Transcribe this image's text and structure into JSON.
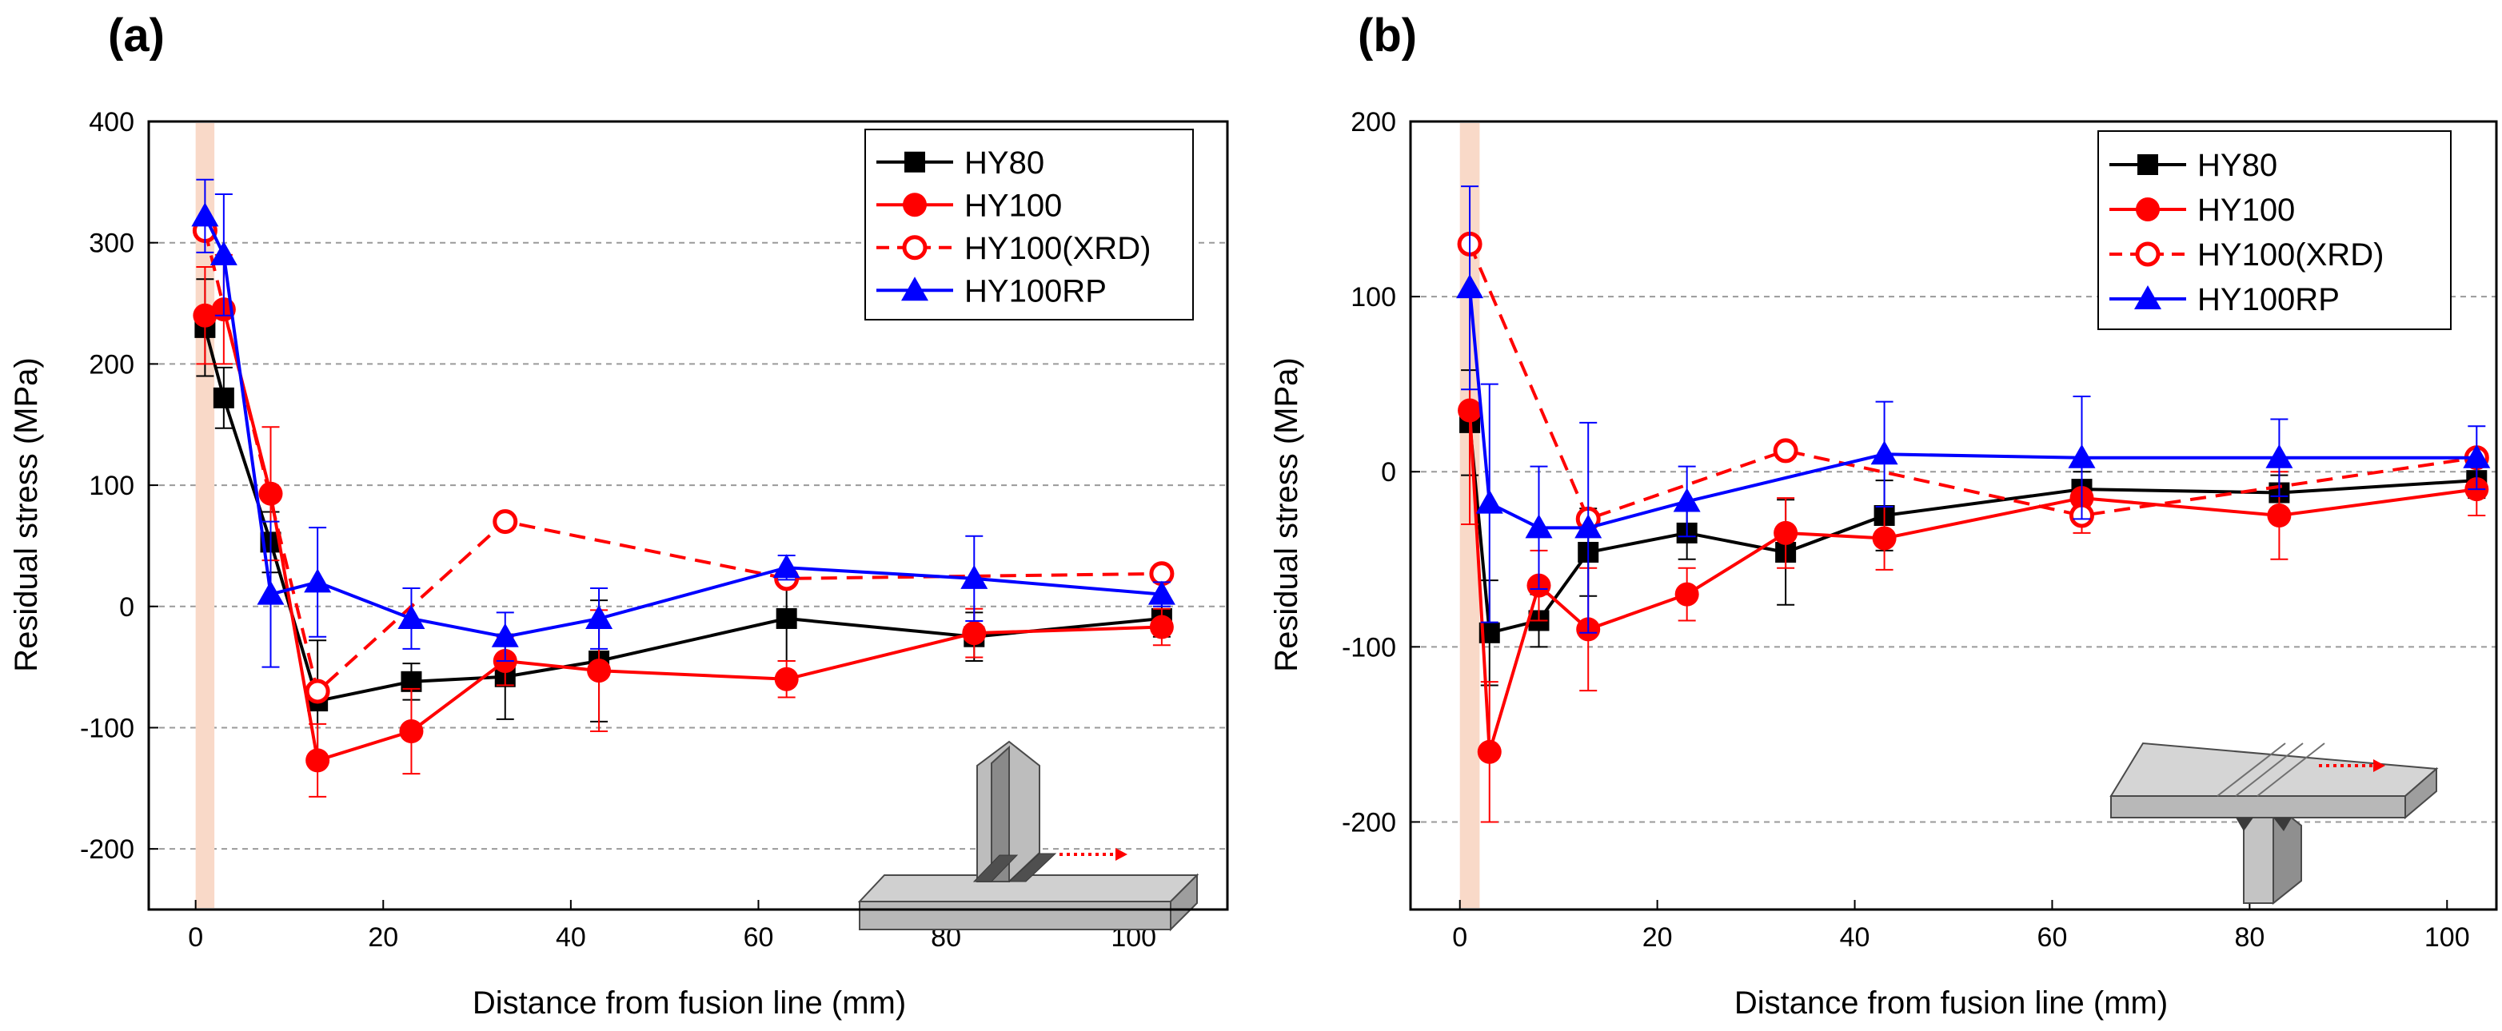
{
  "chart_data": [
    {
      "type": "line",
      "panel_label": "(a)",
      "xlabel": "Distance from fusion line (mm)",
      "ylabel": "Residual stress (MPa)",
      "xlim": [
        -5,
        110
      ],
      "ylim": [
        -250,
        400
      ],
      "xticks": [
        "0",
        "20",
        "40",
        "60",
        "80",
        "100"
      ],
      "yticks": [
        "-200",
        "-100",
        "0",
        "100",
        "200",
        "300",
        "400"
      ],
      "grid": "horizontal dashed",
      "legend_position": "top-right",
      "fusion_band": [
        0,
        2
      ],
      "inset": "T-joint sketch with red dotted arrow on base plate",
      "series": [
        {
          "name": "HY80",
          "color": "#000000",
          "marker": "square",
          "dashed": false,
          "x": [
            1,
            3,
            8,
            13,
            23,
            33,
            43,
            63,
            83,
            103
          ],
          "y": [
            230,
            172,
            53,
            -78,
            -62,
            -58,
            -45,
            -10,
            -25,
            -10
          ],
          "err": [
            40,
            25,
            25,
            50,
            15,
            35,
            50,
            35,
            20,
            15
          ]
        },
        {
          "name": "HY100",
          "color": "#ff0000",
          "marker": "circle",
          "dashed": false,
          "x": [
            1,
            3,
            8,
            13,
            23,
            33,
            43,
            63,
            83,
            103
          ],
          "y": [
            240,
            245,
            93,
            -127,
            -103,
            -45,
            -53,
            -60,
            -22,
            -17
          ],
          "err": [
            40,
            45,
            55,
            30,
            35,
            20,
            50,
            15,
            20,
            15
          ]
        },
        {
          "name": "HY100(XRD)",
          "color": "#ff0000",
          "marker": "open-circle",
          "dashed": true,
          "x": [
            1,
            13,
            33,
            63,
            103
          ],
          "y": [
            310,
            -70,
            70,
            23,
            27
          ],
          "err": [
            0,
            0,
            0,
            0,
            0
          ]
        },
        {
          "name": "HY100RP",
          "color": "#0000ff",
          "marker": "triangle",
          "dashed": false,
          "x": [
            1,
            3,
            8,
            13,
            23,
            33,
            43,
            63,
            83,
            103
          ],
          "y": [
            322,
            290,
            10,
            20,
            -10,
            -25,
            -10,
            32,
            23,
            10
          ],
          "err": [
            30,
            50,
            60,
            45,
            25,
            20,
            25,
            10,
            35,
            10
          ]
        }
      ]
    },
    {
      "type": "line",
      "panel_label": "(b)",
      "xlabel": "Distance from fusion line (mm)",
      "ylabel": "Residual stress (MPa)",
      "xlim": [
        -5,
        105
      ],
      "ylim": [
        -250,
        200
      ],
      "xticks": [
        "0",
        "20",
        "40",
        "60",
        "80",
        "100"
      ],
      "yticks": [
        "-200",
        "-100",
        "0",
        "100",
        "200"
      ],
      "grid": "horizontal dashed",
      "legend_position": "top-right",
      "fusion_band": [
        0,
        2
      ],
      "inset": "inverted T-joint sketch with red dotted arrow on top plate",
      "series": [
        {
          "name": "HY80",
          "color": "#000000",
          "marker": "square",
          "dashed": false,
          "x": [
            1,
            3,
            8,
            13,
            23,
            33,
            43,
            63,
            83,
            103
          ],
          "y": [
            28,
            -92,
            -85,
            -46,
            -35,
            -46,
            -25,
            -10,
            -12,
            -5
          ],
          "err": [
            30,
            30,
            15,
            25,
            15,
            30,
            20,
            10,
            10,
            10
          ]
        },
        {
          "name": "HY100",
          "color": "#ff0000",
          "marker": "circle",
          "dashed": false,
          "x": [
            1,
            3,
            8,
            13,
            23,
            33,
            43,
            63,
            83,
            103
          ],
          "y": [
            35,
            -160,
            -65,
            -90,
            -70,
            -35,
            -38,
            -15,
            -25,
            -10
          ],
          "err": [
            65,
            40,
            20,
            35,
            15,
            20,
            18,
            20,
            25,
            15
          ]
        },
        {
          "name": "HY100(XRD)",
          "color": "#ff0000",
          "marker": "open-circle",
          "dashed": true,
          "x": [
            1,
            13,
            33,
            63,
            103
          ],
          "y": [
            130,
            -27,
            12,
            -25,
            8
          ],
          "err": [
            0,
            0,
            0,
            0,
            0
          ]
        },
        {
          "name": "HY100RP",
          "color": "#0000ff",
          "marker": "triangle",
          "dashed": false,
          "x": [
            1,
            3,
            8,
            13,
            23,
            43,
            63,
            83,
            103
          ],
          "y": [
            105,
            -18,
            -32,
            -32,
            -17,
            10,
            8,
            8,
            8
          ],
          "err": [
            58,
            68,
            35,
            60,
            20,
            30,
            35,
            22,
            18
          ]
        }
      ]
    }
  ]
}
